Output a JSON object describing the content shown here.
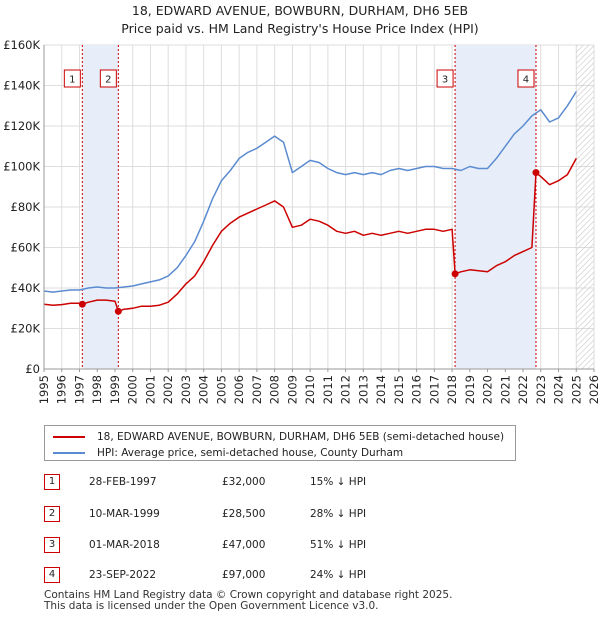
{
  "chart_data": {
    "type": "line",
    "title": "18, EDWARD AVENUE, BOWBURN, DURHAM, DH6 5EB",
    "subtitle": "Price paid vs. HM Land Registry's House Price Index (HPI)",
    "xlim": [
      1995,
      2026
    ],
    "ylim": [
      0,
      160000
    ],
    "x_ticks": [
      "1995",
      "1996",
      "1997",
      "1998",
      "1999",
      "2000",
      "2001",
      "2002",
      "2003",
      "2004",
      "2005",
      "2006",
      "2007",
      "2008",
      "2009",
      "2010",
      "2011",
      "2012",
      "2013",
      "2014",
      "2015",
      "2016",
      "2017",
      "2018",
      "2019",
      "2020",
      "2021",
      "2022",
      "2023",
      "2024",
      "2025",
      "2026"
    ],
    "y_ticks": [
      {
        "value": 0,
        "label": "£0"
      },
      {
        "value": 20000,
        "label": "£20K"
      },
      {
        "value": 40000,
        "label": "£40K"
      },
      {
        "value": 60000,
        "label": "£60K"
      },
      {
        "value": 80000,
        "label": "£80K"
      },
      {
        "value": 100000,
        "label": "£100K"
      },
      {
        "value": 120000,
        "label": "£120K"
      },
      {
        "value": 140000,
        "label": "£140K"
      },
      {
        "value": 160000,
        "label": "£160K"
      }
    ],
    "grid": true,
    "shaded_periods": [
      [
        1997.16,
        1999.19
      ],
      [
        2018.17,
        2022.73
      ]
    ],
    "forecast_hatch_from": 2025.0,
    "series": [
      {
        "name": "18, EDWARD AVENUE, BOWBURN, DURHAM, DH6 5EB (semi-detached house)",
        "color": "#cc0000",
        "points": [
          [
            1995.0,
            32000
          ],
          [
            1995.5,
            31500
          ],
          [
            1996.0,
            31800
          ],
          [
            1996.5,
            32500
          ],
          [
            1997.0,
            32500
          ],
          [
            1997.16,
            32000
          ],
          [
            1997.5,
            33000
          ],
          [
            1998.0,
            34000
          ],
          [
            1998.5,
            34000
          ],
          [
            1999.0,
            33500
          ],
          [
            1999.19,
            28500
          ],
          [
            1999.5,
            29500
          ],
          [
            2000.0,
            30000
          ],
          [
            2000.5,
            31000
          ],
          [
            2001.0,
            31000
          ],
          [
            2001.5,
            31500
          ],
          [
            2002.0,
            33000
          ],
          [
            2002.5,
            37000
          ],
          [
            2003.0,
            42000
          ],
          [
            2003.5,
            46000
          ],
          [
            2004.0,
            53000
          ],
          [
            2004.5,
            61000
          ],
          [
            2005.0,
            68000
          ],
          [
            2005.5,
            72000
          ],
          [
            2006.0,
            75000
          ],
          [
            2006.5,
            77000
          ],
          [
            2007.0,
            79000
          ],
          [
            2007.5,
            81000
          ],
          [
            2008.0,
            83000
          ],
          [
            2008.5,
            80000
          ],
          [
            2009.0,
            70000
          ],
          [
            2009.5,
            71000
          ],
          [
            2010.0,
            74000
          ],
          [
            2010.5,
            73000
          ],
          [
            2011.0,
            71000
          ],
          [
            2011.5,
            68000
          ],
          [
            2012.0,
            67000
          ],
          [
            2012.5,
            68000
          ],
          [
            2013.0,
            66000
          ],
          [
            2013.5,
            67000
          ],
          [
            2014.0,
            66000
          ],
          [
            2014.5,
            67000
          ],
          [
            2015.0,
            68000
          ],
          [
            2015.5,
            67000
          ],
          [
            2016.0,
            68000
          ],
          [
            2016.5,
            69000
          ],
          [
            2017.0,
            69000
          ],
          [
            2017.5,
            68000
          ],
          [
            2018.0,
            69000
          ],
          [
            2018.17,
            47000
          ],
          [
            2018.5,
            48000
          ],
          [
            2019.0,
            49000
          ],
          [
            2019.5,
            48500
          ],
          [
            2020.0,
            48000
          ],
          [
            2020.5,
            51000
          ],
          [
            2021.0,
            53000
          ],
          [
            2021.5,
            56000
          ],
          [
            2022.0,
            58000
          ],
          [
            2022.5,
            60000
          ],
          [
            2022.73,
            97000
          ],
          [
            2023.0,
            95000
          ],
          [
            2023.5,
            91000
          ],
          [
            2024.0,
            93000
          ],
          [
            2024.5,
            96000
          ],
          [
            2025.0,
            104000
          ]
        ]
      },
      {
        "name": "HPI: Average price, semi-detached house, County Durham",
        "color": "#5b8bd0",
        "points": [
          [
            1995.0,
            38500
          ],
          [
            1995.5,
            38000
          ],
          [
            1996.0,
            38500
          ],
          [
            1996.5,
            39000
          ],
          [
            1997.0,
            39000
          ],
          [
            1997.5,
            40000
          ],
          [
            1998.0,
            40500
          ],
          [
            1998.5,
            40000
          ],
          [
            1999.0,
            40000
          ],
          [
            1999.5,
            40500
          ],
          [
            2000.0,
            41000
          ],
          [
            2000.5,
            42000
          ],
          [
            2001.0,
            43000
          ],
          [
            2001.5,
            44000
          ],
          [
            2002.0,
            46000
          ],
          [
            2002.5,
            50000
          ],
          [
            2003.0,
            56000
          ],
          [
            2003.5,
            63000
          ],
          [
            2004.0,
            73000
          ],
          [
            2004.5,
            84000
          ],
          [
            2005.0,
            93000
          ],
          [
            2005.5,
            98000
          ],
          [
            2006.0,
            104000
          ],
          [
            2006.5,
            107000
          ],
          [
            2007.0,
            109000
          ],
          [
            2007.5,
            112000
          ],
          [
            2008.0,
            115000
          ],
          [
            2008.5,
            112000
          ],
          [
            2009.0,
            97000
          ],
          [
            2009.5,
            100000
          ],
          [
            2010.0,
            103000
          ],
          [
            2010.5,
            102000
          ],
          [
            2011.0,
            99000
          ],
          [
            2011.5,
            97000
          ],
          [
            2012.0,
            96000
          ],
          [
            2012.5,
            97000
          ],
          [
            2013.0,
            96000
          ],
          [
            2013.5,
            97000
          ],
          [
            2014.0,
            96000
          ],
          [
            2014.5,
            98000
          ],
          [
            2015.0,
            99000
          ],
          [
            2015.5,
            98000
          ],
          [
            2016.0,
            99000
          ],
          [
            2016.5,
            100000
          ],
          [
            2017.0,
            100000
          ],
          [
            2017.5,
            99000
          ],
          [
            2018.0,
            99000
          ],
          [
            2018.5,
            98000
          ],
          [
            2019.0,
            100000
          ],
          [
            2019.5,
            99000
          ],
          [
            2020.0,
            99000
          ],
          [
            2020.5,
            104000
          ],
          [
            2021.0,
            110000
          ],
          [
            2021.5,
            116000
          ],
          [
            2022.0,
            120000
          ],
          [
            2022.5,
            125000
          ],
          [
            2023.0,
            128000
          ],
          [
            2023.5,
            122000
          ],
          [
            2024.0,
            124000
          ],
          [
            2024.5,
            130000
          ],
          [
            2025.0,
            137000
          ]
        ]
      }
    ],
    "markers": [
      {
        "label": "1",
        "x": 1997.16,
        "y": 32000
      },
      {
        "label": "2",
        "x": 1999.19,
        "y": 28500
      },
      {
        "label": "3",
        "x": 2018.17,
        "y": 47000
      },
      {
        "label": "4",
        "x": 2022.73,
        "y": 97000
      }
    ]
  },
  "legend": {
    "property_label": "18, EDWARD AVENUE, BOWBURN, DURHAM, DH6 5EB (semi-detached house)",
    "hpi_label": "HPI: Average price, semi-detached house, County Durham",
    "property_color": "#cc0000",
    "hpi_color": "#5b8bd0"
  },
  "transactions": [
    {
      "num": "1",
      "date": "28-FEB-1997",
      "price": "£32,000",
      "hpi": "15% ↓ HPI"
    },
    {
      "num": "2",
      "date": "10-MAR-1999",
      "price": "£28,500",
      "hpi": "28% ↓ HPI"
    },
    {
      "num": "3",
      "date": "01-MAR-2018",
      "price": "£47,000",
      "hpi": "51% ↓ HPI"
    },
    {
      "num": "4",
      "date": "23-SEP-2022",
      "price": "£97,000",
      "hpi": "24% ↓ HPI"
    }
  ],
  "footer": {
    "line1": "Contains HM Land Registry data © Crown copyright and database right 2025.",
    "line2": "This data is licensed under the Open Government Licence v3.0."
  }
}
